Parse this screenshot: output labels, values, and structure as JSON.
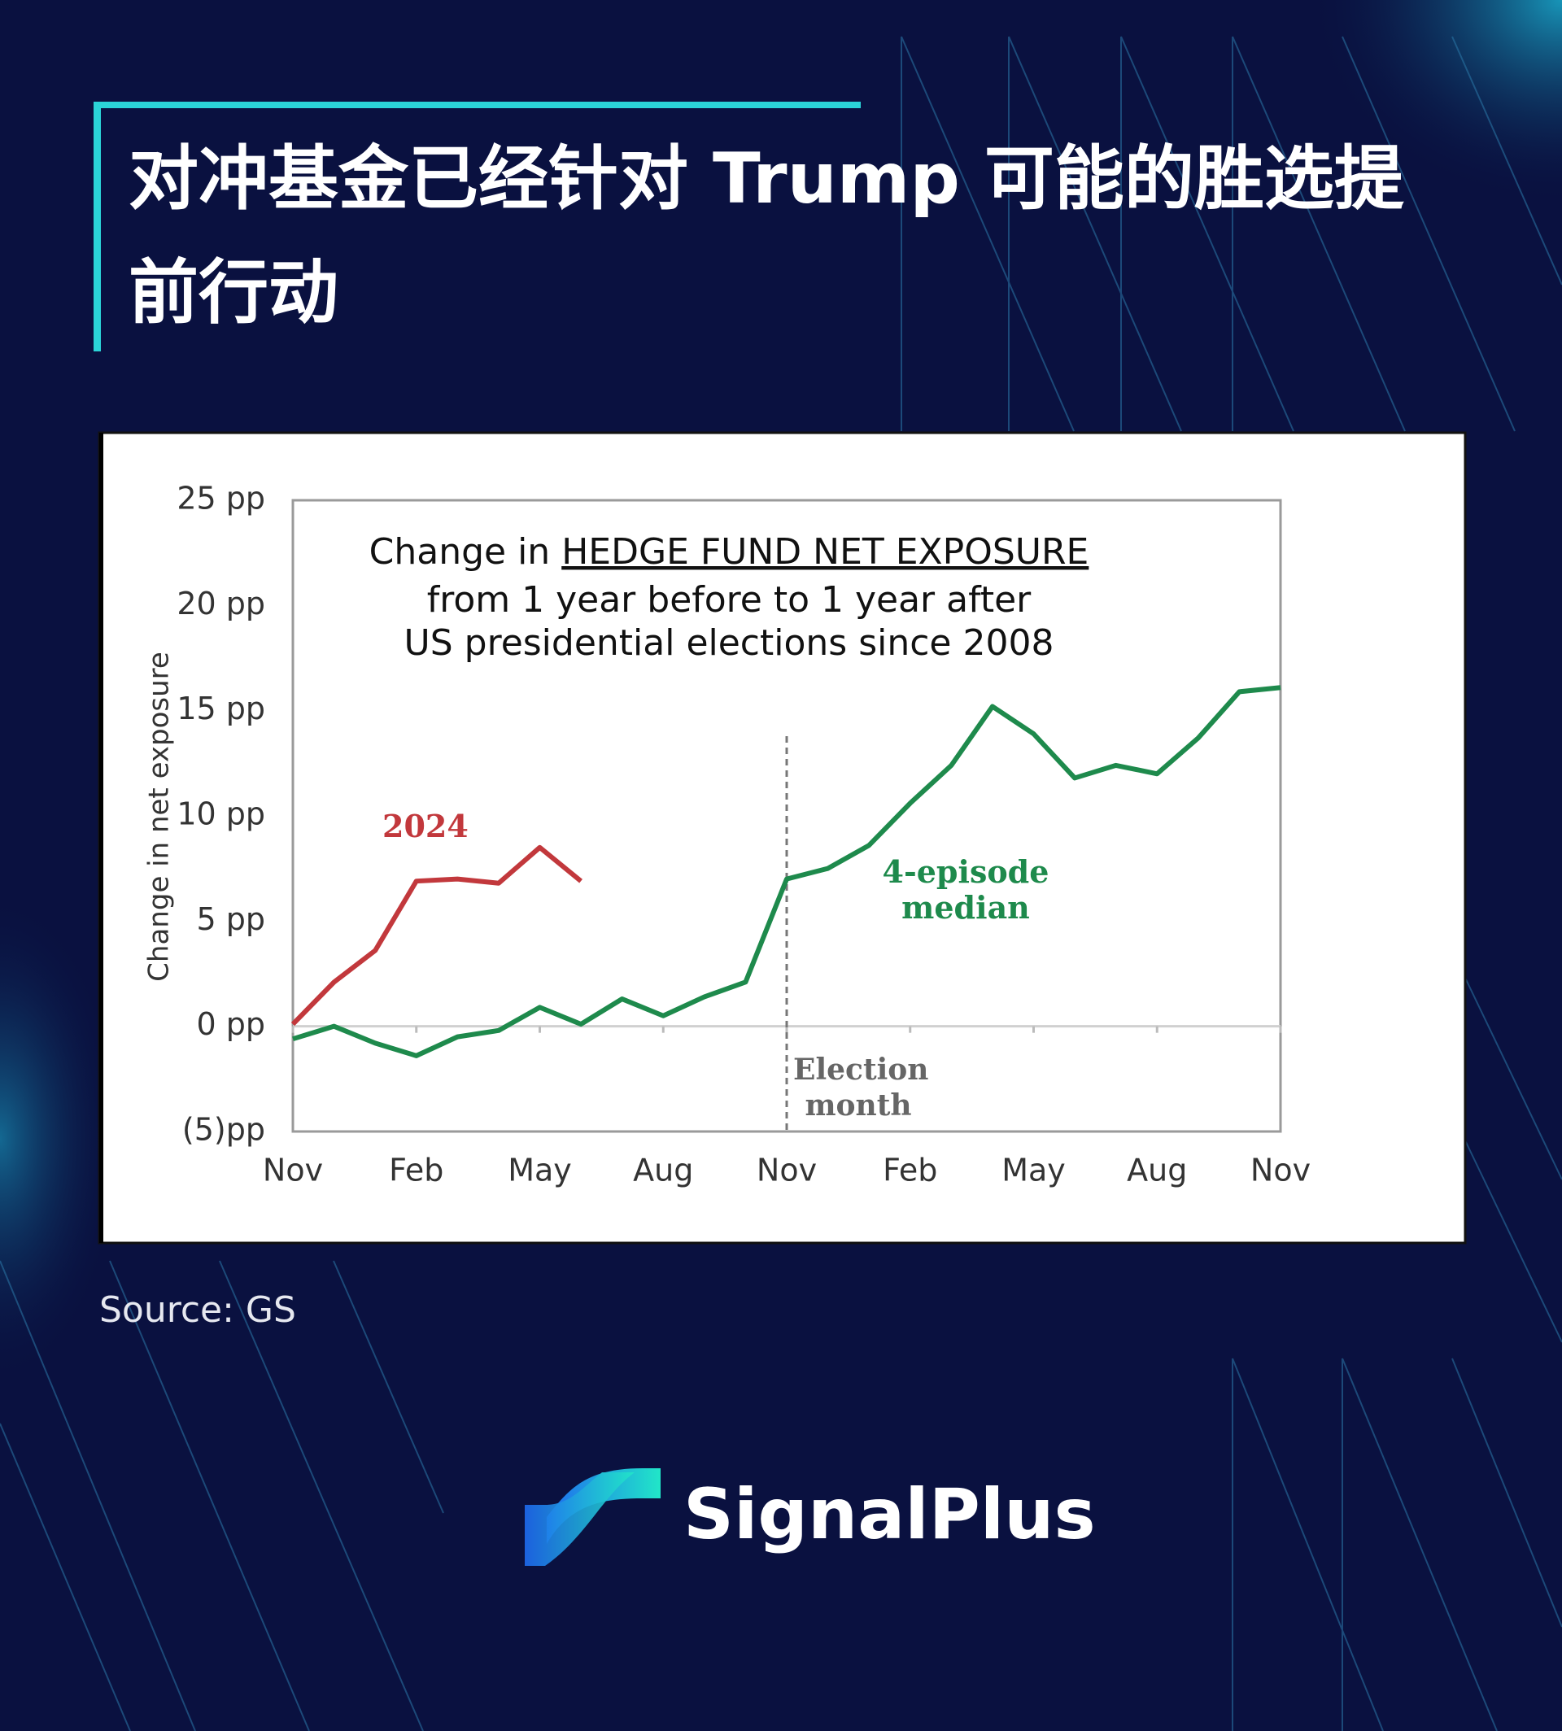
{
  "header": {
    "title": "对冲基金已经针对 Trump 可能的胜选提前行动"
  },
  "chart_data": {
    "type": "line",
    "title": {
      "lead": "Change in",
      "emphasis": "HEDGE FUND NET EXPOSURE",
      "lines": [
        "from 1 year before to 1 year after",
        "US presidential elections since 2008"
      ]
    },
    "ylabel": "Change in net exposure",
    "categories": [
      "Nov",
      null,
      null,
      "Feb",
      null,
      null,
      "May",
      null,
      null,
      "Aug",
      null,
      null,
      "Nov",
      null,
      null,
      "Feb",
      null,
      null,
      "May",
      null,
      null,
      "Aug",
      null,
      null,
      "Nov"
    ],
    "ylim": [
      -5,
      25
    ],
    "yticks": [
      {
        "value": 25,
        "label": "25 pp"
      },
      {
        "value": 20,
        "label": "20 pp"
      },
      {
        "value": 15,
        "label": "15 pp"
      },
      {
        "value": 10,
        "label": "10 pp"
      },
      {
        "value": 5,
        "label": "5 pp"
      },
      {
        "value": 0,
        "label": "0 pp"
      },
      {
        "value": -5,
        "label": "(5)pp"
      }
    ],
    "grid": false,
    "series": [
      {
        "name": "2024",
        "color": "#c2383c",
        "values": [
          0.1,
          2.1,
          3.6,
          6.9,
          7.0,
          6.8,
          8.5,
          6.9,
          null,
          null,
          null,
          null,
          null,
          null,
          null,
          null,
          null,
          null,
          null,
          null,
          null,
          null,
          null,
          null,
          null
        ]
      },
      {
        "name": "4-episode median",
        "color": "#1e8a4c",
        "values": [
          -0.6,
          0.0,
          -0.8,
          -1.4,
          -0.5,
          -0.2,
          0.9,
          0.1,
          1.3,
          0.5,
          1.4,
          2.1,
          7.0,
          7.5,
          8.6,
          10.6,
          12.4,
          15.2,
          13.9,
          11.8,
          12.4,
          12.0,
          13.7,
          15.9,
          16.1
        ]
      }
    ],
    "vline": {
      "x": 12,
      "label": "Election month"
    }
  },
  "source": "Source: GS",
  "brand": "SignalPlus"
}
